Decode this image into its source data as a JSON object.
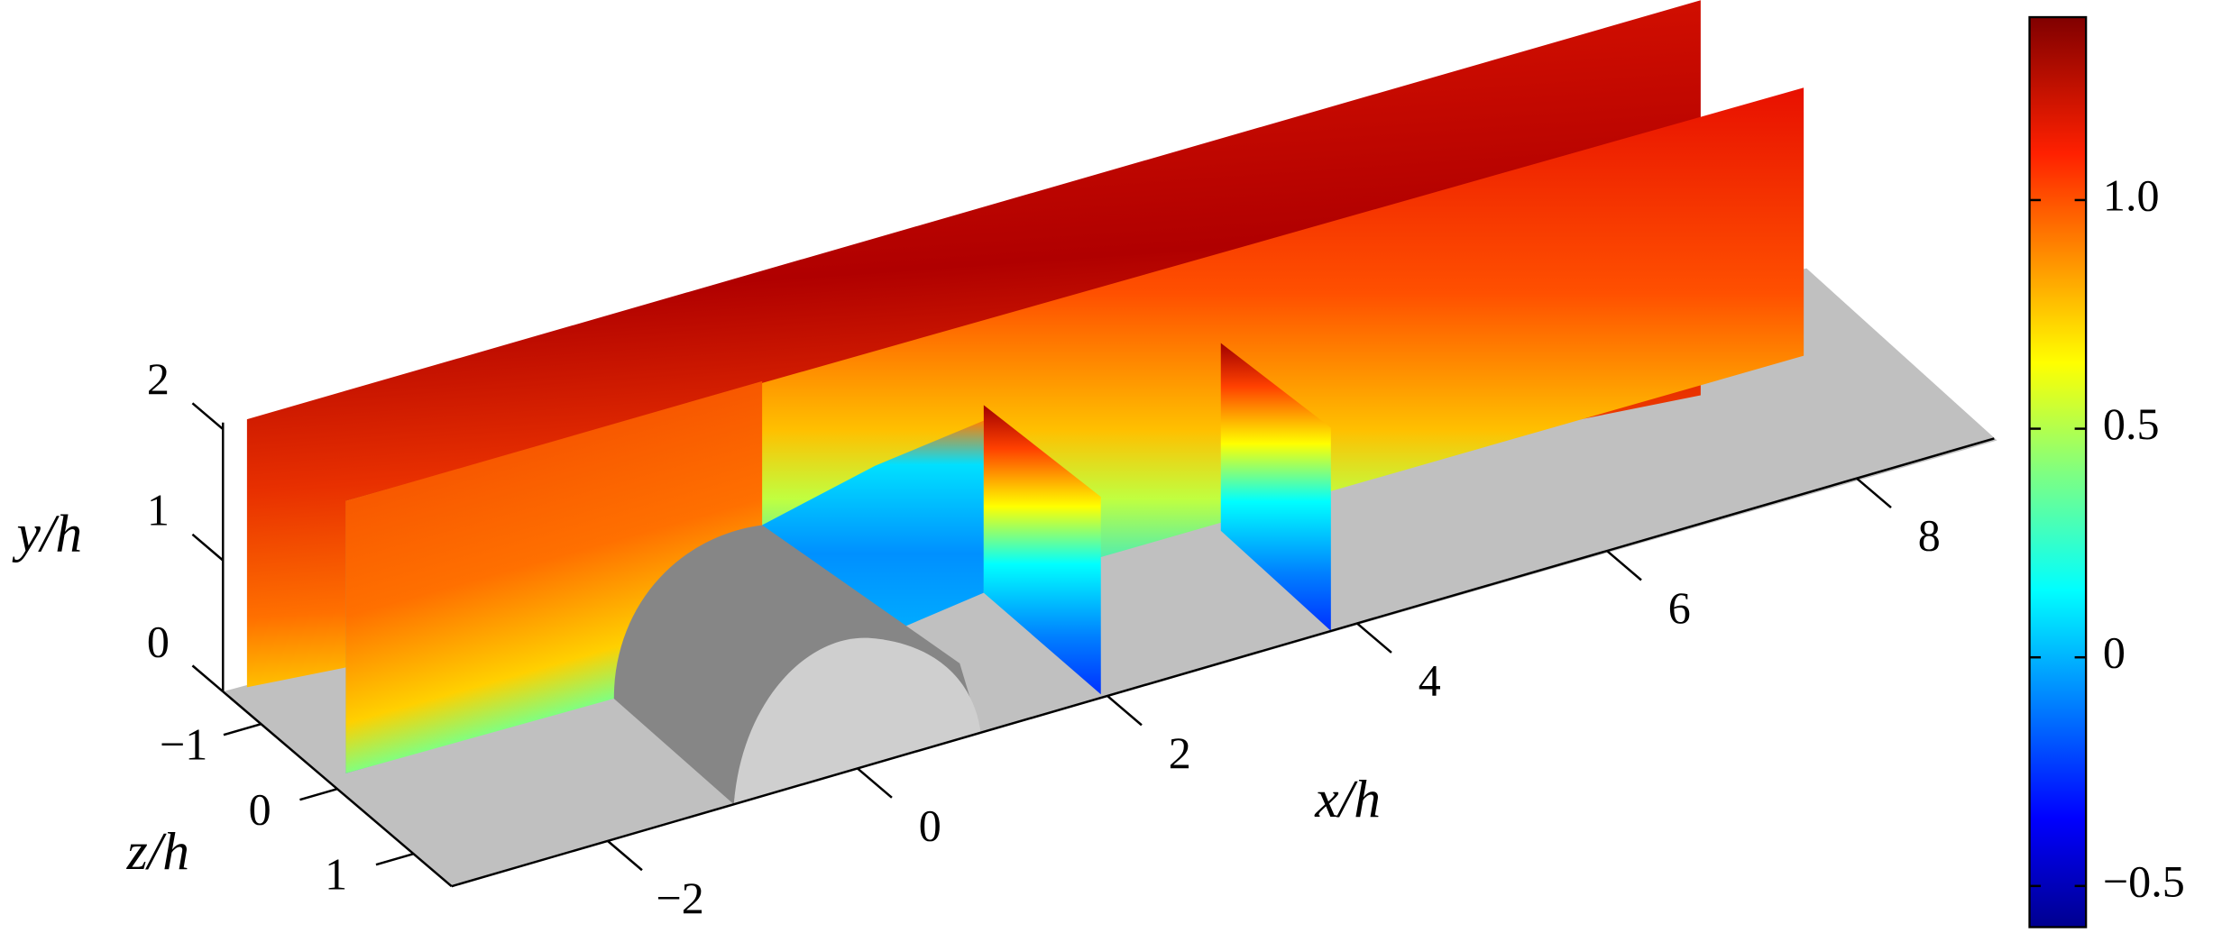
{
  "chart_data": {
    "type": "contour3d",
    "xlabel": "x/h",
    "ylabel": "y/h",
    "zlabel": "z/h",
    "xlim": [
      -3.25,
      9.1
    ],
    "ylim": [
      0,
      2.05
    ],
    "zlim": [
      -1.5,
      1.5
    ],
    "xticks": [
      {
        "value": -2,
        "label": "−2"
      },
      0,
      2,
      4,
      6,
      8
    ],
    "yticks": [
      0,
      1,
      2
    ],
    "zticks": [
      {
        "value": -1,
        "label": "−1"
      },
      0,
      1
    ],
    "colorbar": {
      "colormap": "jet",
      "lim": [
        -0.59,
        1.4
      ],
      "ticks": [
        {
          "value": -0.5,
          "label": "−0.5"
        },
        0,
        0.5,
        {
          "value": 1,
          "label": "1.0"
        }
      ]
    }
  }
}
